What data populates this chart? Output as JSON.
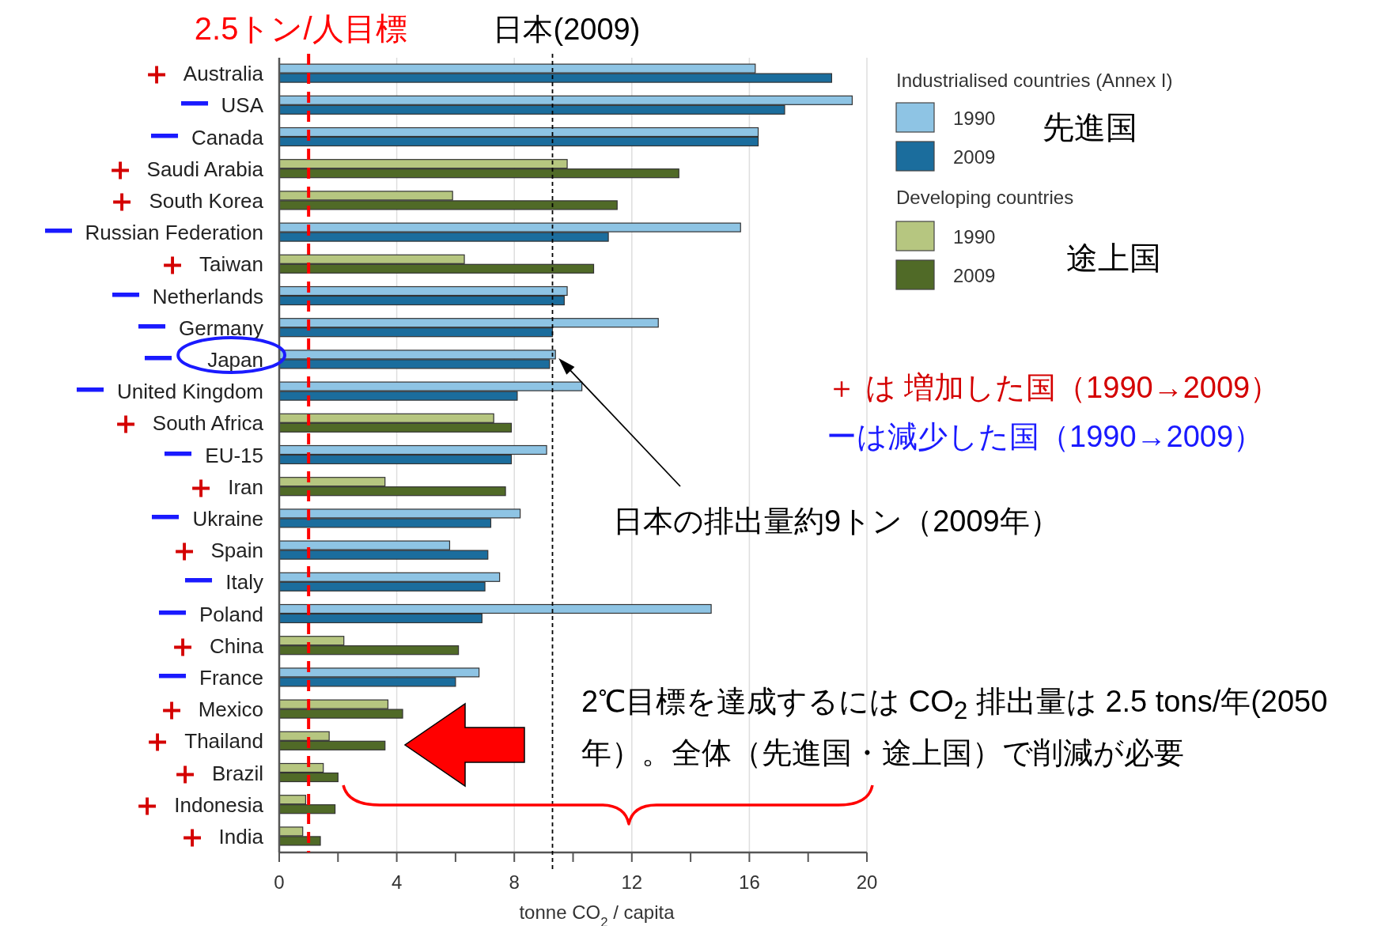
{
  "chart_data": {
    "type": "bar",
    "orientation": "horizontal",
    "categories": [
      "Australia",
      "USA",
      "Canada",
      "Saudi Arabia",
      "South Korea",
      "Russian Federation",
      "Taiwan",
      "Netherlands",
      "Germany",
      "Japan",
      "United Kingdom",
      "South Africa",
      "EU-15",
      "Iran",
      "Ukraine",
      "Spain",
      "Italy",
      "Poland",
      "China",
      "France",
      "Mexico",
      "Thailand",
      "Brazil",
      "Indonesia",
      "India"
    ],
    "series": [
      {
        "name": "1990",
        "color": "#8ec4e4",
        "values": [
          16.2,
          19.5,
          16.3,
          null,
          null,
          15.7,
          null,
          9.8,
          12.9,
          9.4,
          10.3,
          null,
          9.1,
          null,
          8.2,
          5.8,
          7.5,
          14.7,
          null,
          6.8,
          null,
          null,
          null,
          null,
          null
        ]
      },
      {
        "name": "2009",
        "color": "#1b6d9d",
        "values": [
          18.8,
          17.2,
          16.3,
          null,
          null,
          11.2,
          null,
          9.7,
          9.3,
          9.2,
          8.1,
          null,
          7.9,
          null,
          7.2,
          7.1,
          7.0,
          6.9,
          null,
          6.0,
          null,
          null,
          null,
          null,
          null
        ]
      },
      {
        "name": "1990",
        "color": "#b6c680",
        "values": [
          null,
          null,
          null,
          9.8,
          5.9,
          null,
          6.3,
          null,
          null,
          null,
          null,
          7.3,
          null,
          3.6,
          null,
          null,
          null,
          null,
          2.2,
          null,
          3.7,
          1.7,
          1.5,
          0.9,
          0.8
        ]
      },
      {
        "name": "2009",
        "color": "#506a27",
        "values": [
          null,
          null,
          null,
          13.6,
          11.5,
          null,
          10.7,
          null,
          null,
          null,
          null,
          7.9,
          null,
          7.7,
          null,
          null,
          null,
          null,
          6.1,
          null,
          4.2,
          3.6,
          2.0,
          1.9,
          1.4
        ]
      }
    ],
    "xlim": [
      0,
      20
    ],
    "xticks": [
      0,
      {
        "value": 2,
        "label": null
      },
      4,
      {
        "value": 6,
        "label": null
      },
      8,
      {
        "value": 10,
        "label": null
      },
      12,
      {
        "value": 14,
        "label": null
      },
      16,
      {
        "value": 18,
        "label": null
      },
      20
    ],
    "xlabel": "tonne CO$_{2}$ / capita",
    "grid": "x",
    "legend": "top right",
    "legend_title": "Industrialised countries (Annex I)",
    "ref_lines": [
      {
        "axis": "x",
        "value": 1,
        "label": "2.5トン/人目標",
        "color": "#ff0000",
        "line_style": "dashed"
      },
      {
        "axis": "x",
        "value": 9.3,
        "label": "日本(2009)",
        "color": "#000000",
        "line_style": "dotted"
      }
    ],
    "annotations": [
      "Developing countries",
      "先進国",
      "途上国",
      "＋ は 増加した国（1990→2009）",
      "ーは減少した国（1990→2009）",
      "日本の排出量約9トン（2009年）",
      "2℃目標を達成するには CO$_{2}$ 排出量は 2.5 tons/年(2050年）。全体（先進国・途上国）で削減が必要",
      "＋",
      "ー",
      "ー",
      "＋",
      "＋",
      "ー",
      "＋",
      "ー",
      "ー",
      "ー",
      "ー",
      "＋",
      "ー",
      "＋",
      "ー",
      "＋",
      "ー",
      "ー",
      "＋",
      "ー",
      "＋",
      "＋",
      "＋",
      "＋",
      "＋"
    ]
  }
}
